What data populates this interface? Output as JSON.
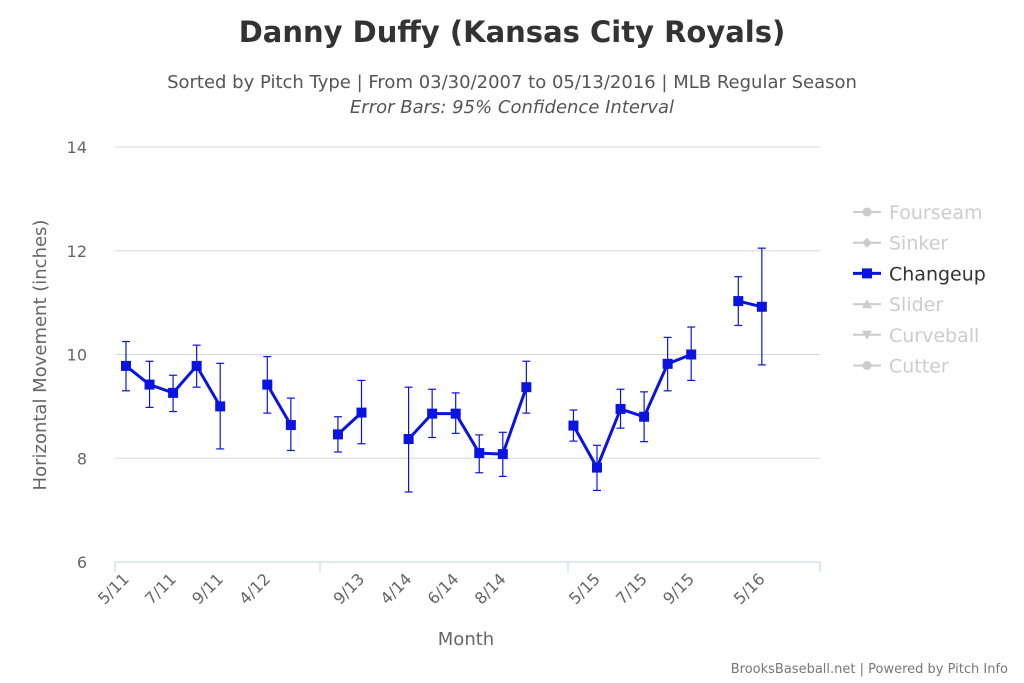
{
  "header": {
    "title": "Danny Duffy (Kansas City Royals)",
    "subtitle": "Sorted by Pitch Type | From 03/30/2007 to 05/13/2016 | MLB Regular Season",
    "subtitle2": "Error Bars: 95% Confidence Interval"
  },
  "credits": "BrooksBaseball.net | Powered by Pitch Info",
  "colors": {
    "series": "#0a14e0",
    "inactive": "#cccccc",
    "active_text": "#333333",
    "grid": "#d8d8d8"
  },
  "chart_data": {
    "type": "line",
    "xlabel": "Month",
    "ylabel": "Horizontal Movement (inches)",
    "ylim": [
      6,
      14
    ],
    "yticks": [
      6,
      8,
      10,
      12,
      14
    ],
    "grid": true,
    "legend_position": "right",
    "x_tick_labels": [
      "5/11",
      "7/11",
      "9/11",
      "4/12",
      "9/13",
      "4/14",
      "6/14",
      "8/14",
      "5/15",
      "7/15",
      "9/15",
      "5/16"
    ],
    "legend": [
      {
        "name": "Fourseam",
        "active": false,
        "marker": "circle"
      },
      {
        "name": "Sinker",
        "active": false,
        "marker": "diamond"
      },
      {
        "name": "Changeup",
        "active": true,
        "marker": "square"
      },
      {
        "name": "Slider",
        "active": false,
        "marker": "triangle"
      },
      {
        "name": "Curveball",
        "active": false,
        "marker": "triangle-down"
      },
      {
        "name": "Cutter",
        "active": false,
        "marker": "circle"
      }
    ],
    "series": [
      {
        "name": "Changeup",
        "points": [
          {
            "x": "5/11",
            "y": 9.78,
            "low": 9.3,
            "high": 10.25
          },
          {
            "x": "6/11",
            "y": 9.42,
            "low": 8.98,
            "high": 9.87
          },
          {
            "x": "7/11",
            "y": 9.26,
            "low": 8.9,
            "high": 9.6
          },
          {
            "x": "8/11",
            "y": 9.78,
            "low": 9.37,
            "high": 10.18
          },
          {
            "x": "9/11",
            "y": 9.0,
            "low": 8.18,
            "high": 9.83
          },
          {
            "x": "4/12",
            "y": 9.42,
            "low": 8.87,
            "high": 9.96
          },
          {
            "x": "5/12",
            "y": 8.64,
            "low": 8.15,
            "high": 9.16
          },
          {
            "x": "8/13",
            "y": 8.46,
            "low": 8.12,
            "high": 8.8
          },
          {
            "x": "9/13",
            "y": 8.88,
            "low": 8.28,
            "high": 9.5
          },
          {
            "x": "4/14",
            "y": 8.37,
            "low": 7.35,
            "high": 9.37
          },
          {
            "x": "5/14",
            "y": 8.86,
            "low": 8.4,
            "high": 9.33
          },
          {
            "x": "6/14",
            "y": 8.86,
            "low": 8.48,
            "high": 9.26
          },
          {
            "x": "7/14",
            "y": 8.1,
            "low": 7.72,
            "high": 8.45
          },
          {
            "x": "8/14",
            "y": 8.08,
            "low": 7.65,
            "high": 8.5
          },
          {
            "x": "9/14",
            "y": 9.37,
            "low": 8.87,
            "high": 9.87
          },
          {
            "x": "4/15",
            "y": 8.63,
            "low": 8.33,
            "high": 8.93
          },
          {
            "x": "5/15",
            "y": 7.82,
            "low": 7.38,
            "high": 8.25
          },
          {
            "x": "6/15",
            "y": 8.95,
            "low": 8.58,
            "high": 9.33
          },
          {
            "x": "7/15",
            "y": 8.8,
            "low": 8.32,
            "high": 9.28
          },
          {
            "x": "8/15",
            "y": 9.82,
            "low": 9.3,
            "high": 10.33
          },
          {
            "x": "9/15",
            "y": 10.0,
            "low": 9.5,
            "high": 10.53
          },
          {
            "x": "4/16",
            "y": 11.03,
            "low": 10.56,
            "high": 11.5
          },
          {
            "x": "5/16",
            "y": 10.92,
            "low": 9.8,
            "high": 12.05
          }
        ]
      }
    ]
  }
}
